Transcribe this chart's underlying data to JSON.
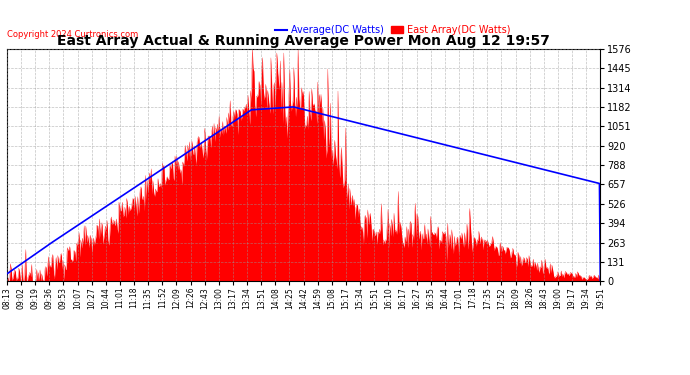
{
  "title": "East Array Actual & Running Average Power Mon Aug 12 19:57",
  "copyright": "Copyright 2024 Curtronics.com",
  "legend_avg": "Average(DC Watts)",
  "legend_east": "East Array(DC Watts)",
  "y_max": 1576.4,
  "y_min": 0.0,
  "y_ticks": [
    0.0,
    131.4,
    262.7,
    394.1,
    525.5,
    656.8,
    788.2,
    919.6,
    1050.9,
    1182.3,
    1313.6,
    1445.0,
    1576.4
  ],
  "x_labels": [
    "08:13",
    "09:02",
    "09:19",
    "09:36",
    "09:53",
    "10:07",
    "10:27",
    "10:44",
    "11:01",
    "11:18",
    "11:35",
    "11:52",
    "12:09",
    "12:26",
    "12:43",
    "13:00",
    "13:17",
    "13:34",
    "13:51",
    "14:08",
    "14:25",
    "14:42",
    "14:59",
    "15:08",
    "15:17",
    "15:34",
    "15:51",
    "16:10",
    "16:17",
    "16:27",
    "16:35",
    "16:44",
    "17:01",
    "17:18",
    "17:35",
    "17:52",
    "18:09",
    "18:26",
    "18:43",
    "19:00",
    "19:17",
    "19:34",
    "19:51"
  ],
  "background_color": "#ffffff",
  "grid_color": "#999999",
  "bar_color": "#ff0000",
  "line_color": "#0000ff",
  "title_color": "#000000",
  "copyright_color": "#ff0000"
}
